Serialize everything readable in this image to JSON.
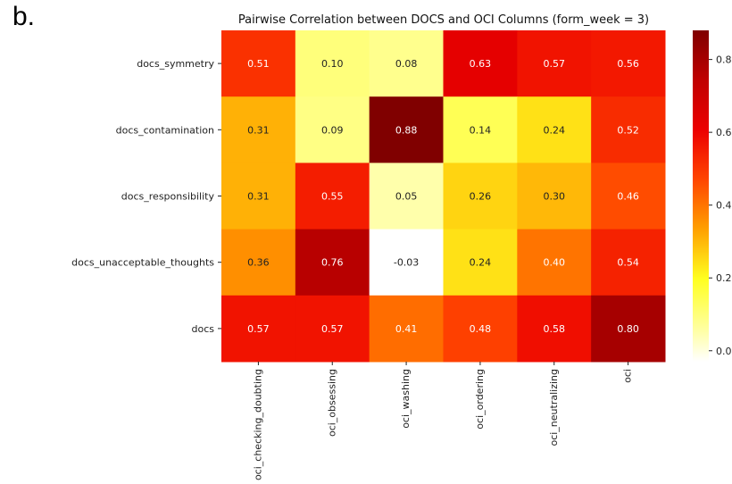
{
  "panel_label": "b.",
  "chart_data": {
    "type": "heatmap",
    "title": "Pairwise Correlation between DOCS and OCI Columns (form_week = 3)",
    "rows": [
      "docs_symmetry",
      "docs_contamination",
      "docs_responsibility",
      "docs_unacceptable_thoughts",
      "docs"
    ],
    "columns": [
      "oci_checking_doubting",
      "oci_obsessing",
      "oci_washing",
      "oci_ordering",
      "oci_neutralizing",
      "oci"
    ],
    "values": [
      [
        0.51,
        0.1,
        0.08,
        0.63,
        0.57,
        0.56
      ],
      [
        0.31,
        0.09,
        0.88,
        0.14,
        0.24,
        0.52
      ],
      [
        0.31,
        0.55,
        0.05,
        0.26,
        0.3,
        0.46
      ],
      [
        0.36,
        0.76,
        -0.03,
        0.24,
        0.4,
        0.54
      ],
      [
        0.57,
        0.57,
        0.41,
        0.48,
        0.58,
        0.8
      ]
    ],
    "colormap": "hot_r",
    "vmin": -0.03,
    "vmax": 0.88,
    "colorbar_ticks": [
      "0.0",
      "0.2",
      "0.4",
      "0.6",
      "0.8"
    ],
    "colorbar_tick_values": [
      0.0,
      0.2,
      0.4,
      0.6,
      0.8
    ],
    "annotations": true
  }
}
